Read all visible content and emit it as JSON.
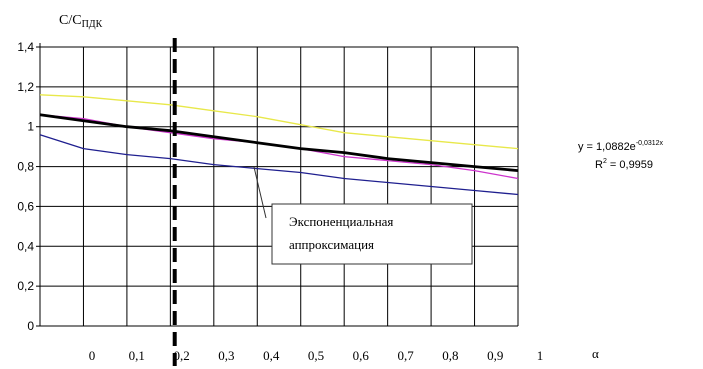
{
  "chart_data": {
    "type": "line",
    "ylabel_main": "C/C",
    "ylabel_sub": "ПДК",
    "xlabel": "α",
    "ylim": [
      0,
      1.4
    ],
    "yticks": [
      "0",
      "0,2",
      "0,4",
      "0,6",
      "0,8",
      "1",
      "1,2",
      "1,4"
    ],
    "x_tick_labels": [
      "0",
      "0,1",
      "0,2",
      "0,3",
      "0,4",
      "0,5",
      "0,6",
      "0,7",
      "0,8",
      "0,9",
      "1"
    ],
    "x": [
      -0.1,
      0.0,
      0.1,
      0.2,
      0.3,
      0.4,
      0.5,
      0.6,
      0.7,
      0.8,
      0.9,
      1.0
    ],
    "xlim": [
      -0.1,
      1.0
    ],
    "grid": true,
    "series": [
      {
        "color": "#e8e84a",
        "values": [
          1.16,
          1.15,
          1.13,
          1.11,
          1.08,
          1.05,
          1.01,
          0.97,
          0.95,
          0.93,
          0.91,
          0.89
        ]
      },
      {
        "color": "#cc33cc",
        "values": [
          1.06,
          1.04,
          1.0,
          0.97,
          0.94,
          0.92,
          0.89,
          0.85,
          0.83,
          0.81,
          0.78,
          0.74
        ]
      },
      {
        "color": "#000000",
        "values": [
          1.06,
          1.03,
          1.0,
          0.98,
          0.95,
          0.92,
          0.89,
          0.87,
          0.84,
          0.82,
          0.8,
          0.78
        ]
      },
      {
        "color": "#1f1f8f",
        "values": [
          0.96,
          0.89,
          0.86,
          0.84,
          0.81,
          0.79,
          0.77,
          0.74,
          0.72,
          0.7,
          0.68,
          0.66
        ]
      }
    ],
    "marker_line_x": 0.21,
    "annotation": {
      "line1": "Экспоненциальная",
      "line2": "аппроксимация"
    },
    "trend_equation": {
      "prefix": "y = 1,0882e",
      "exponent": "-0,0312x",
      "r2_prefix": "R",
      "r2_exp": "2",
      "r2_value": " = 0,9959"
    }
  }
}
